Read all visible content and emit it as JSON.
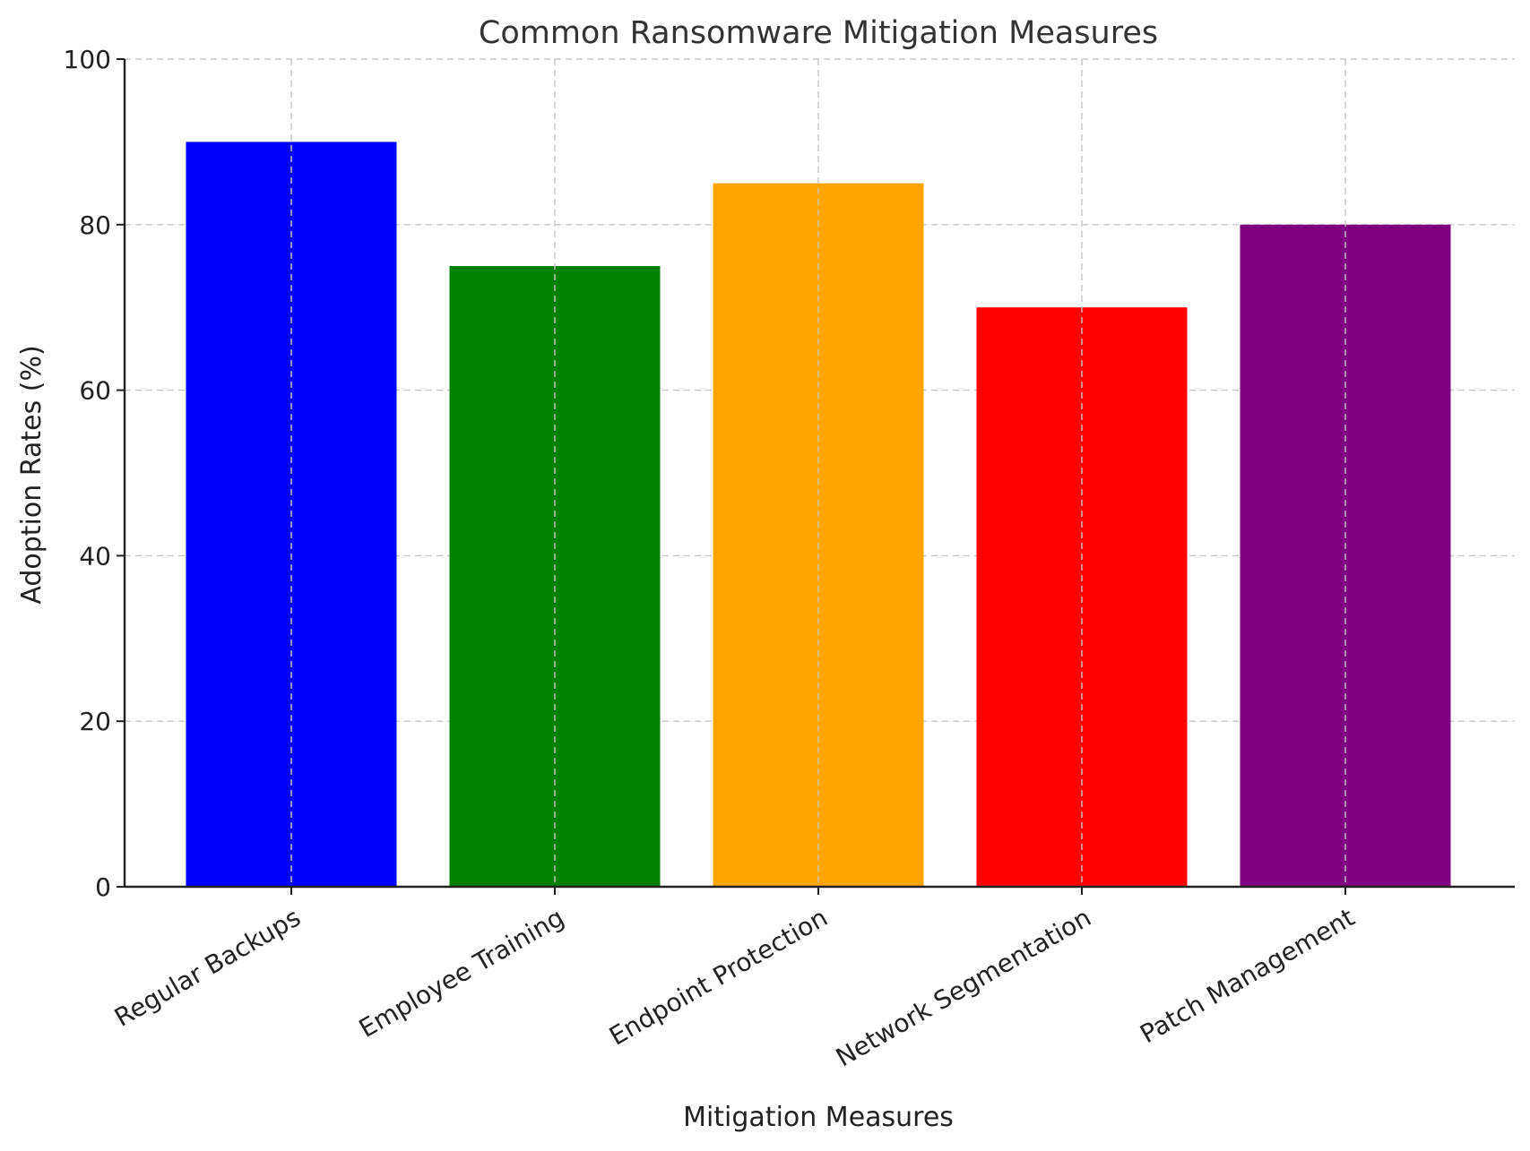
{
  "chart_data": {
    "type": "bar",
    "title": "Common Ransomware Mitigation Measures",
    "xlabel": "Mitigation Measures",
    "ylabel": "Adoption Rates (%)",
    "categories": [
      "Regular Backups",
      "Employee Training",
      "Endpoint Protection",
      "Network Segmentation",
      "Patch Management"
    ],
    "values": [
      90,
      75,
      85,
      70,
      80
    ],
    "colors": [
      "#0000ff",
      "#008000",
      "#ffa500",
      "#ff0000",
      "#800080"
    ],
    "ylim": [
      0,
      100
    ],
    "yticks": [
      0,
      20,
      40,
      60,
      80,
      100
    ],
    "grid": true
  }
}
